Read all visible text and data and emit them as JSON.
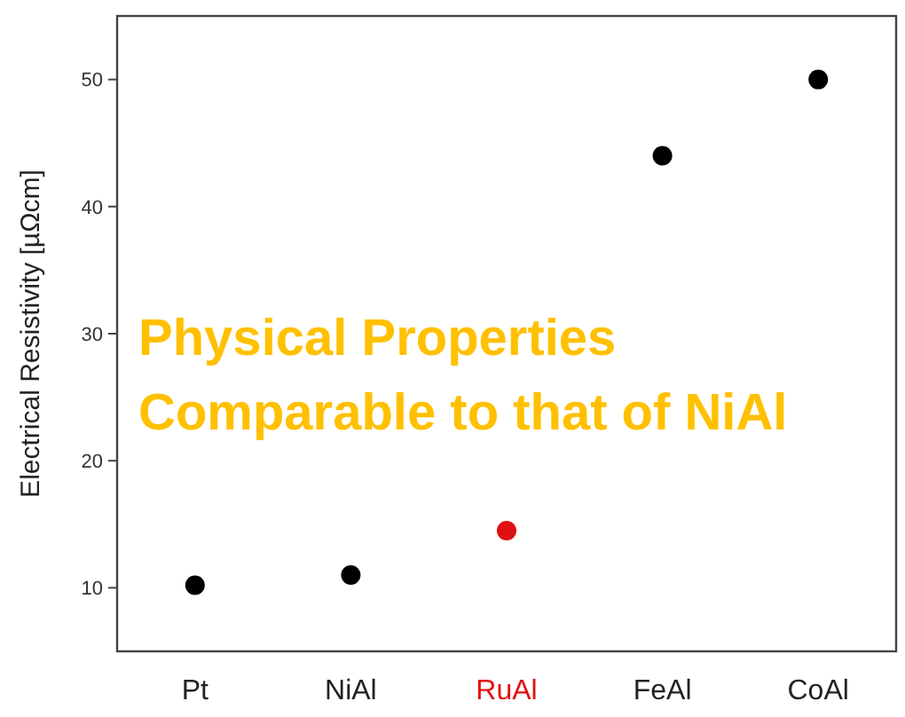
{
  "chart_data": {
    "type": "scatter",
    "ylabel": "Electrical Resistivity [µΩcm]",
    "categories": [
      "Pt",
      "NiAl",
      "RuAl",
      "FeAl",
      "CoAl"
    ],
    "values": [
      10.2,
      11.0,
      14.5,
      44,
      50
    ],
    "colors": [
      "#000000",
      "#000000",
      "#e01010",
      "#000000",
      "#000000"
    ],
    "marker": "circle",
    "ylim": [
      5,
      55
    ],
    "yticks": [
      10,
      20,
      30,
      40,
      50
    ],
    "annotations": [
      "Physical Properties",
      "Comparable to that of NiAl"
    ]
  }
}
